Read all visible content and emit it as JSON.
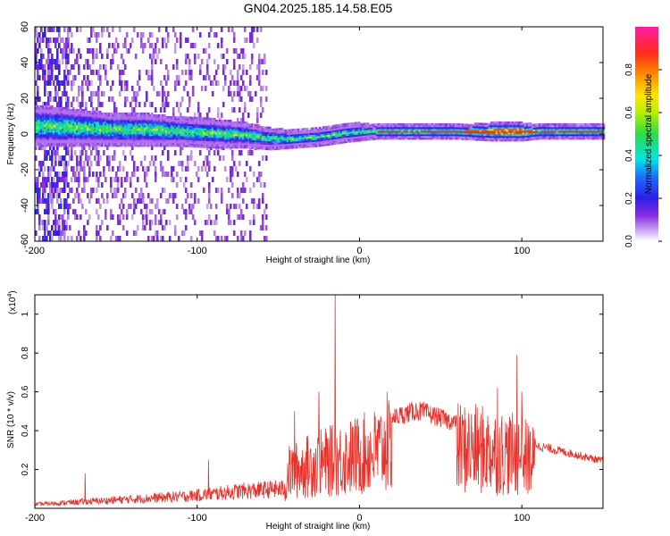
{
  "title": "GN04.2025.185.14.58.E05",
  "chart_data": [
    {
      "type": "heatmap",
      "xlabel": "Height of straight line (km)",
      "ylabel": "Frequency (Hz)",
      "xlim": [
        -200,
        150
      ],
      "ylim": [
        -60,
        60
      ],
      "xticks": [
        -200,
        -100,
        0,
        100
      ],
      "yticks": [
        60,
        40,
        20,
        0,
        -20,
        -40,
        -60
      ],
      "grid": false,
      "ridge": {
        "description_values_x": [
          -190,
          -170,
          -150,
          -130,
          -110,
          -90,
          -70,
          -55,
          -40,
          -25,
          -10,
          0,
          10,
          30,
          60,
          80,
          100,
          110,
          150
        ],
        "center_freq": [
          4,
          3,
          2,
          2,
          1,
          0,
          -1,
          -3,
          -3,
          -2,
          0,
          1,
          1,
          1,
          1,
          1,
          1,
          1,
          1
        ],
        "halfwidth": [
          9,
          8,
          7,
          7,
          6,
          6,
          5,
          4,
          3,
          3,
          3,
          3,
          2,
          2,
          2,
          3,
          3,
          2,
          2
        ]
      },
      "noise_extent_x": [
        -200,
        -58
      ],
      "colorbar": {
        "label": "Normalized spectral amplitude",
        "ticks": [
          "0.0",
          "0.2",
          "0.4",
          "0.6",
          "0.8"
        ],
        "tick_values": [
          0,
          0.2,
          0.4,
          0.6,
          0.8
        ],
        "range": [
          0,
          1
        ]
      }
    },
    {
      "type": "line",
      "xlabel": "Height of straight line (km)",
      "ylabel": "SNR (10 * v/v)",
      "scale_label": "(x10",
      "scale_exponent": "4",
      "xlim": [
        -200,
        150
      ],
      "ylim": [
        0,
        1.1
      ],
      "xticks": [
        -200,
        -100,
        0,
        100
      ],
      "yticks": [
        "0.2",
        "0.4",
        "0.6",
        "0.8",
        "1"
      ],
      "ytick_values": [
        0.2,
        0.4,
        0.6,
        0.8,
        1.0
      ],
      "color": "#e8332c",
      "envelope": {
        "x": [
          -200,
          -170,
          -140,
          -110,
          -90,
          -75,
          -60,
          -46,
          -44,
          -30,
          -15,
          0,
          20,
          35,
          40,
          60,
          80,
          95,
          105,
          110,
          125,
          150
        ],
        "y": [
          0.03,
          0.05,
          0.07,
          0.09,
          0.11,
          0.13,
          0.14,
          0.15,
          0.28,
          0.34,
          0.38,
          0.42,
          0.49,
          0.53,
          0.52,
          0.46,
          0.44,
          0.41,
          0.38,
          0.33,
          0.3,
          0.25
        ]
      },
      "spikes": [
        {
          "x": -169,
          "y": 0.18
        },
        {
          "x": -93,
          "y": 0.25
        },
        {
          "x": -40,
          "y": 0.5
        },
        {
          "x": -25,
          "y": 0.6
        },
        {
          "x": -15,
          "y": 1.1
        },
        {
          "x": 17,
          "y": 0.6
        },
        {
          "x": 85,
          "y": 0.62
        },
        {
          "x": 97,
          "y": 0.79
        },
        {
          "x": 100,
          "y": 0.6
        }
      ]
    }
  ]
}
